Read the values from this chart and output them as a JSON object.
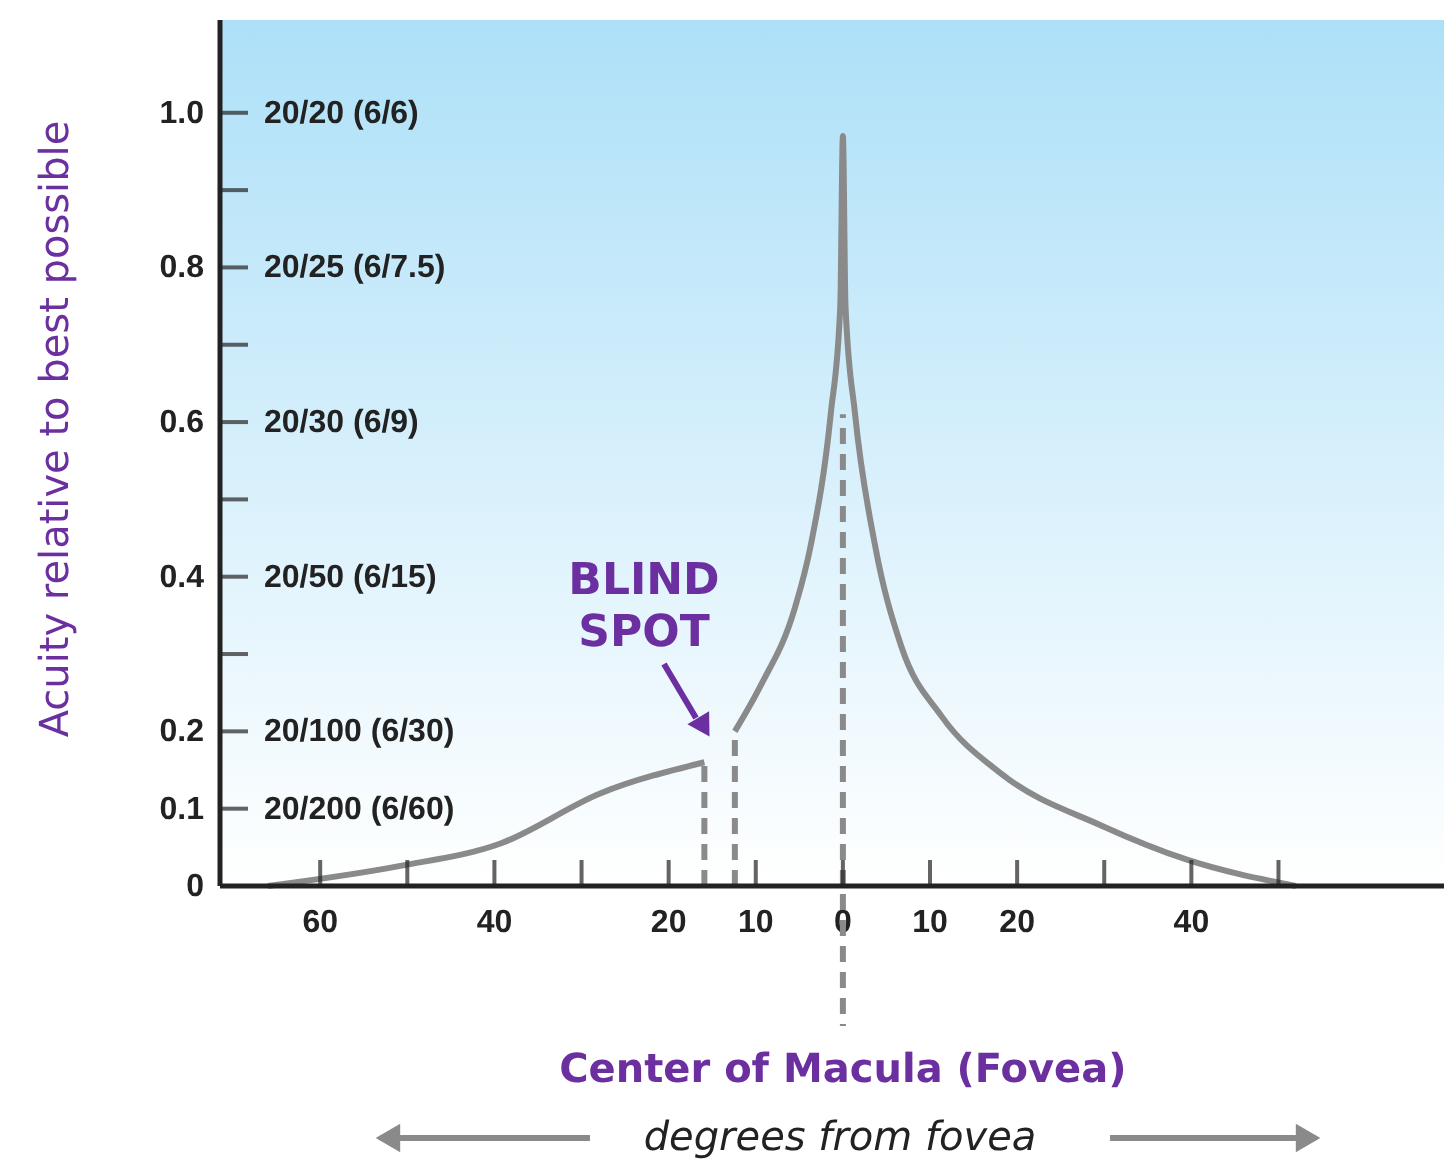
{
  "chart_data": {
    "type": "line",
    "xlabel": "degrees from fovea",
    "ylabel": "Acuity relative to best possible",
    "series": [
      {
        "color": "#8a8a8a",
        "line_style": "solid",
        "x": [
          -66,
          -50.8,
          -39.3,
          -27.8,
          -15.9,
          -14,
          -12.4,
          -9.4,
          -5.5,
          -3.7,
          -1.4,
          -0.3,
          0,
          0.3,
          1.4,
          3.7,
          6.7,
          11.3,
          18.2,
          29.7,
          39.5,
          52
        ],
        "values": [
          0,
          0.026,
          0.055,
          0.12,
          0.16,
          null,
          0.2,
          0.26,
          0.36,
          0.44,
          0.61,
          0.75,
          0.97,
          0.75,
          0.61,
          0.44,
          0.31,
          0.22,
          0.145,
          0.078,
          0.034,
          0
        ]
      },
      {
        "color": "#8a8a8a",
        "line_style": "dashed",
        "x": [
          -15.9,
          -15.9
        ],
        "values": [
          0,
          0.16
        ]
      },
      {
        "color": "#8a8a8a",
        "line_style": "dashed",
        "x": [
          -12.4,
          -12.4
        ],
        "values": [
          0,
          0.2
        ]
      },
      {
        "color": "#8a8a8a",
        "line_style": "dashed",
        "x": [
          0,
          0
        ],
        "values": [
          0,
          0.61
        ]
      }
    ],
    "xlim": [
      -71.5,
      69
    ],
    "xticks": [
      {
        "value": -60,
        "label": "60"
      },
      {
        "value": -50,
        "label": null
      },
      {
        "value": -40,
        "label": "40"
      },
      {
        "value": -30,
        "label": null
      },
      {
        "value": -20,
        "label": "20"
      },
      {
        "value": -10,
        "label": "10"
      },
      0,
      10,
      20,
      {
        "value": 30,
        "label": null
      },
      40,
      {
        "value": 50,
        "label": null
      }
    ],
    "ylim": [
      0,
      1.12
    ],
    "yticks": [
      0,
      0.1,
      0.2,
      {
        "value": 0.3,
        "label": null
      },
      0.4,
      {
        "value": 0.5,
        "label": null
      },
      0.6,
      {
        "value": 0.7,
        "label": null
      },
      0.8,
      {
        "value": 0.9,
        "label": null
      },
      {
        "value": 1.0,
        "label": "1.0"
      }
    ],
    "ref_lines": [
      {
        "axis": "x",
        "value": 0,
        "label": "Center of Macula (Fovea)",
        "color": "#8a8a8a",
        "line_style": "dashed"
      }
    ],
    "annotations": [
      "BLIND SPOT",
      "20/20 (6/6)",
      "20/25 (6/7.5)",
      "20/30 (6/9)",
      "20/50 (6/15)",
      "20/100 (6/30)",
      "20/200 (6/60)"
    ],
    "grid": false,
    "marker": "none"
  }
}
